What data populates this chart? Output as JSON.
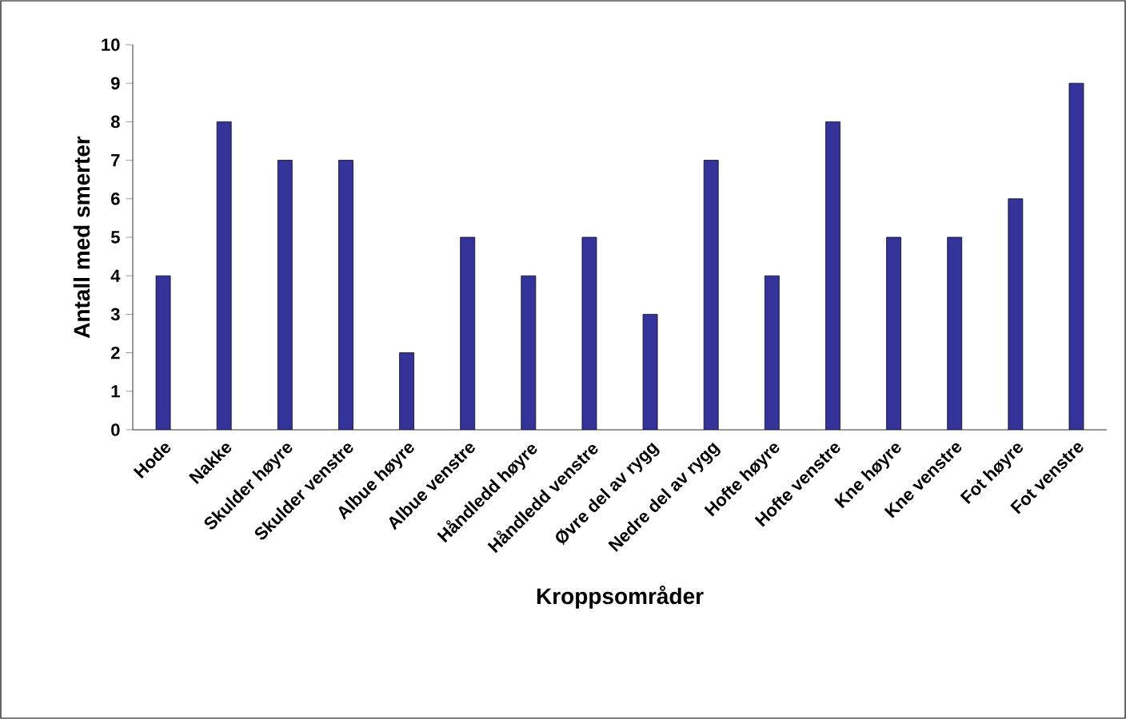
{
  "chart_data": {
    "type": "bar",
    "xlabel": "Kroppsområder",
    "ylabel": "Antall med smerter",
    "categories": [
      "Hode",
      "Nakke",
      "Skulder høyre",
      "Skulder venstre",
      "Albue høyre",
      "Albue venstre",
      "Håndledd høyre",
      "Håndledd venstre",
      "Øvre del av rygg",
      "Nedre del av rygg",
      "Hofte høyre",
      "Hofte venstre",
      "Kne høyre",
      "Kne venstre",
      "Fot høyre",
      "Fot venstre"
    ],
    "values": [
      4,
      8,
      7,
      7,
      2,
      5,
      4,
      5,
      3,
      7,
      4,
      8,
      5,
      5,
      6,
      9
    ],
    "color": "#333399",
    "ylim": [
      0,
      10
    ],
    "yticks": [
      0,
      1,
      2,
      3,
      4,
      5,
      6,
      7,
      8,
      9,
      10
    ],
    "grid": false
  }
}
